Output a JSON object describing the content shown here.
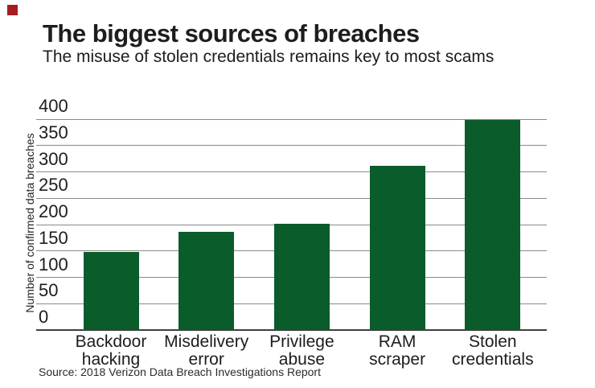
{
  "brand": {
    "logo_color": "#a51d21"
  },
  "header": {
    "title": "The biggest sources of breaches",
    "subtitle": "The misuse of stolen credentials remains key to most scams"
  },
  "footer": {
    "source": "Source: 2018 Verizon Data Breach Investigations Report"
  },
  "chart_data": {
    "type": "bar",
    "title": "The biggest sources of breaches",
    "subtitle": "The misuse of stolen credentials remains key to most scams",
    "categories": [
      "Backdoor hacking",
      "Misdelivery error",
      "Privilege abuse",
      "RAM scraper",
      "Stolen credentials"
    ],
    "values": [
      148,
      187,
      201,
      312,
      399
    ],
    "xlabel": "",
    "ylabel": "Number of confirmed data breaches",
    "ylim": [
      0,
      400
    ],
    "yticks": [
      0,
      50,
      100,
      150,
      200,
      250,
      300,
      350,
      400
    ],
    "grid": true,
    "legend": false,
    "tick_label_position": "above-gridline-left",
    "bar_color": "#0a5c2a",
    "gridline_color": "#8a8a8a",
    "axis_color": "#3f3f3f"
  }
}
